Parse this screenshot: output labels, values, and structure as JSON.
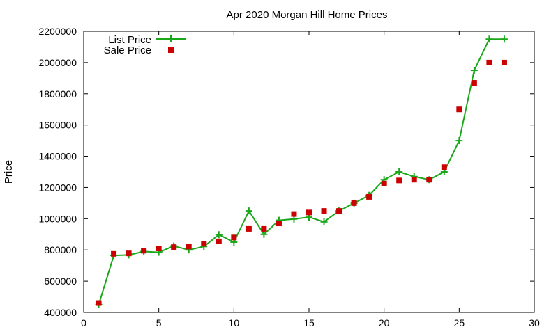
{
  "chart_data": {
    "type": "line",
    "title": "Apr 2020 Morgan Hill Home Prices",
    "xlabel": "",
    "ylabel": "Price",
    "xlim": [
      0,
      30
    ],
    "ylim": [
      400000,
      2200000
    ],
    "xticks": [
      0,
      5,
      10,
      15,
      20,
      25,
      30
    ],
    "yticks": [
      400000,
      600000,
      800000,
      1000000,
      1200000,
      1400000,
      1600000,
      1800000,
      2000000,
      2200000
    ],
    "grid": false,
    "legend_position": "top-left",
    "series": [
      {
        "name": "List Price",
        "style": "line-points",
        "marker": "plus",
        "color": "#1aa81a",
        "x": [
          1,
          2,
          3,
          4,
          5,
          6,
          7,
          8,
          9,
          10,
          11,
          12,
          13,
          14,
          15,
          16,
          17,
          18,
          19,
          20,
          21,
          22,
          23,
          24,
          25,
          26,
          27,
          28
        ],
        "y": [
          450000,
          765000,
          768000,
          790000,
          785000,
          825000,
          800000,
          822000,
          898000,
          850000,
          1050000,
          900000,
          990000,
          998000,
          1010000,
          980000,
          1050000,
          1100000,
          1150000,
          1250000,
          1300000,
          1270000,
          1250000,
          1300000,
          1500000,
          1950000,
          2150000,
          2150000
        ]
      },
      {
        "name": "Sale Price",
        "style": "points",
        "marker": "square",
        "color": "#cc0000",
        "x": [
          1,
          2,
          3,
          4,
          5,
          6,
          7,
          8,
          9,
          10,
          11,
          12,
          13,
          14,
          15,
          16,
          17,
          18,
          19,
          20,
          21,
          22,
          23,
          24,
          25,
          26,
          27,
          28
        ],
        "y": [
          460000,
          775000,
          778000,
          795000,
          810000,
          818000,
          822000,
          840000,
          855000,
          880000,
          935000,
          935000,
          970000,
          1030000,
          1040000,
          1050000,
          1050000,
          1100000,
          1140000,
          1225000,
          1245000,
          1250000,
          1250000,
          1330000,
          1700000,
          1870000,
          2000000,
          2000000
        ]
      }
    ]
  }
}
